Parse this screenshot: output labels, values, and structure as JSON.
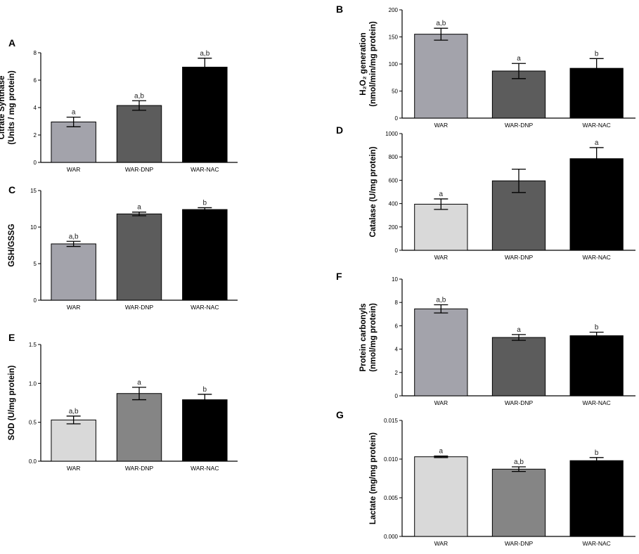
{
  "figure_caption": "",
  "chart_data": [
    {
      "panel": "A",
      "type": "bar",
      "title": "",
      "ylabel": [
        "Citrate Synthase",
        "(Units / mg protein)"
      ],
      "categories": [
        "WAR",
        "WAR-DNP",
        "WAR-NAC"
      ],
      "values": [
        2.95,
        4.15,
        6.95
      ],
      "errors": [
        0.35,
        0.35,
        0.65
      ],
      "sig": [
        "a",
        "a,b",
        "a,b"
      ],
      "colors": [
        "#a3a3ab",
        "#5c5c5c",
        "#000000"
      ],
      "ylim": [
        0,
        8
      ],
      "ticks": [
        "0",
        "2",
        "4",
        "6",
        "8"
      ],
      "tick_values": [
        0,
        2,
        4,
        6,
        8
      ]
    },
    {
      "panel": "B",
      "type": "bar",
      "title": "",
      "ylabel": [
        "H₂O₂ generation",
        "(nmol/min/mg protein)"
      ],
      "categories": [
        "WAR",
        "WAR-DNP",
        "WAR-NAC"
      ],
      "values": [
        155,
        87,
        92
      ],
      "errors": [
        11,
        14,
        18
      ],
      "sig": [
        "a,b",
        "a",
        "b"
      ],
      "colors": [
        "#a3a3ab",
        "#5c5c5c",
        "#000000"
      ],
      "ylim": [
        0,
        200
      ],
      "ticks": [
        "0",
        "50",
        "100",
        "150",
        "200"
      ],
      "tick_values": [
        0,
        50,
        100,
        150,
        200
      ]
    },
    {
      "panel": "C",
      "type": "bar",
      "title": "",
      "ylabel": [
        "GSH/GSSG"
      ],
      "categories": [
        "WAR",
        "WAR-DNP",
        "WAR-NAC"
      ],
      "values": [
        7.7,
        11.8,
        12.4
      ],
      "errors": [
        0.35,
        0.25,
        0.25
      ],
      "sig": [
        "a,b",
        "a",
        "b"
      ],
      "colors": [
        "#a3a3ab",
        "#5c5c5c",
        "#000000"
      ],
      "ylim": [
        0,
        15
      ],
      "ticks": [
        "0",
        "5",
        "10",
        "15"
      ],
      "tick_values": [
        0,
        5,
        10,
        15
      ]
    },
    {
      "panel": "D",
      "type": "bar",
      "title": "",
      "ylabel": [
        "Catalase (U/mg protein)"
      ],
      "categories": [
        "WAR",
        "WAR-DNP",
        "WAR-NAC"
      ],
      "values": [
        395,
        595,
        785
      ],
      "errors": [
        45,
        100,
        95
      ],
      "sig": [
        "a",
        "",
        "a"
      ],
      "colors": [
        "#d9d9d9",
        "#5c5c5c",
        "#000000"
      ],
      "ylim": [
        0,
        1000
      ],
      "ticks": [
        "0",
        "200",
        "400",
        "600",
        "800",
        "1000"
      ],
      "tick_values": [
        0,
        200,
        400,
        600,
        800,
        1000
      ]
    },
    {
      "panel": "E",
      "type": "bar",
      "title": "",
      "ylabel": [
        "SOD (U/mg protein)"
      ],
      "categories": [
        "WAR",
        "WAR-DNP",
        "WAR-NAC"
      ],
      "values": [
        0.53,
        0.87,
        0.79
      ],
      "errors": [
        0.05,
        0.08,
        0.07
      ],
      "sig": [
        "a,b",
        "a",
        "b"
      ],
      "colors": [
        "#d9d9d9",
        "#858585",
        "#000000"
      ],
      "ylim": [
        0,
        1.5
      ],
      "ticks": [
        "0.0",
        "0.5",
        "1.0",
        "1.5"
      ],
      "tick_values": [
        0,
        0.5,
        1.0,
        1.5
      ]
    },
    {
      "panel": "F",
      "type": "bar",
      "title": "",
      "ylabel": [
        "Protein carbonyls",
        "(nmol/mg protein)"
      ],
      "categories": [
        "WAR",
        "WAR-DNP",
        "WAR-NAC"
      ],
      "values": [
        7.45,
        5.0,
        5.15
      ],
      "errors": [
        0.35,
        0.25,
        0.3
      ],
      "sig": [
        "a,b",
        "a",
        "b"
      ],
      "colors": [
        "#a3a3ab",
        "#5c5c5c",
        "#000000"
      ],
      "ylim": [
        0,
        10
      ],
      "ticks": [
        "0",
        "2",
        "4",
        "6",
        "8",
        "10"
      ],
      "tick_values": [
        0,
        2,
        4,
        6,
        8,
        10
      ]
    },
    {
      "panel": "G",
      "type": "bar",
      "title": "",
      "ylabel": [
        "Lactate (mg/mg protein)"
      ],
      "categories": [
        "WAR",
        "WAR-DNP",
        "WAR-NAC"
      ],
      "values": [
        0.0103,
        0.0087,
        0.0098
      ],
      "errors": [
        0.0001,
        0.0003,
        0.0004
      ],
      "sig": [
        "a",
        "a,b",
        "b"
      ],
      "colors": [
        "#d9d9d9",
        "#858585",
        "#000000"
      ],
      "ylim": [
        0,
        0.015
      ],
      "ticks": [
        "0.000",
        "0.005",
        "0.010",
        "0.015"
      ],
      "tick_values": [
        0,
        0.005,
        0.01,
        0.015
      ]
    }
  ]
}
